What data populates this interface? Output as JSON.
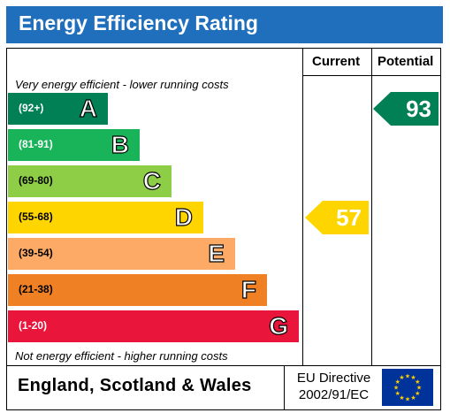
{
  "header": {
    "title": "Energy Efficiency Rating"
  },
  "columns": {
    "current": "Current",
    "potential": "Potential"
  },
  "notes": {
    "top": "Very energy efficient - lower running costs",
    "bottom": "Not energy efficient - higher running costs"
  },
  "chart_data": {
    "type": "bar",
    "title": "Energy Efficiency Rating",
    "categories": [
      "A",
      "B",
      "C",
      "D",
      "E",
      "F",
      "G"
    ],
    "bands": [
      {
        "letter": "A",
        "range": "(92+)",
        "color": "#008054"
      },
      {
        "letter": "B",
        "range": "(81-91)",
        "color": "#19b459"
      },
      {
        "letter": "C",
        "range": "(69-80)",
        "color": "#8dce46"
      },
      {
        "letter": "D",
        "range": "(55-68)",
        "color": "#ffd500"
      },
      {
        "letter": "E",
        "range": "(39-54)",
        "color": "#fcaa65"
      },
      {
        "letter": "F",
        "range": "(21-38)",
        "color": "#ef8023"
      },
      {
        "letter": "G",
        "range": "(1-20)",
        "color": "#e9153b"
      }
    ],
    "current": {
      "value": "57",
      "band": "D",
      "color": "#ffd500"
    },
    "potential": {
      "value": "93",
      "band": "A",
      "color": "#008054"
    }
  },
  "footer": {
    "country": "England, Scotland & Wales",
    "directive_line1": "EU Directive",
    "directive_line2": "2002/91/EC"
  }
}
